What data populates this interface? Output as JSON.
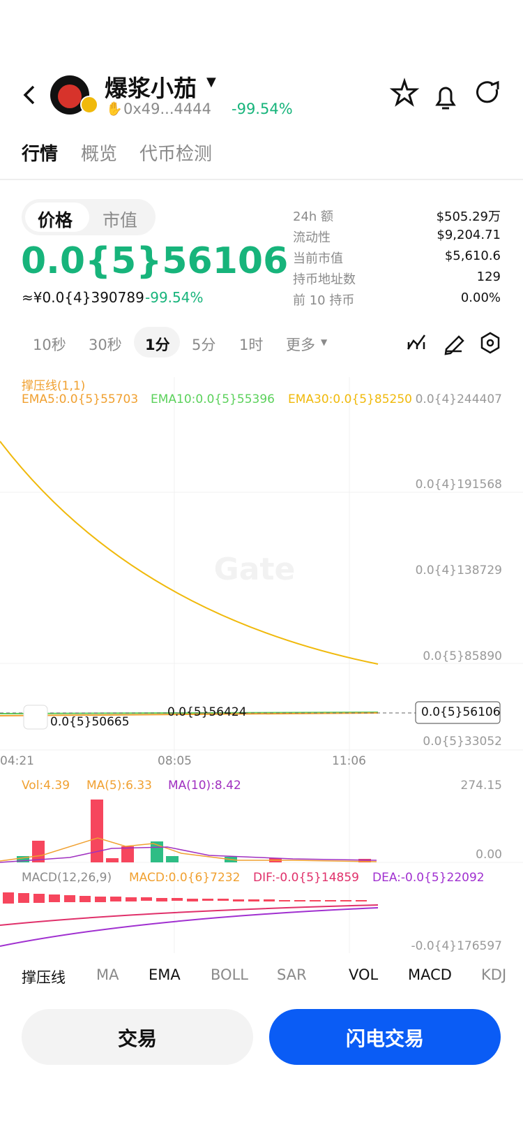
{
  "header": {
    "token_name": "爆浆小茄",
    "address": "0x49...4444",
    "change": "-99.54%"
  },
  "tabs": [
    "行情",
    "概览",
    "代币检测"
  ],
  "toggle": [
    "价格",
    "市值"
  ],
  "price": "0.0{5}56106",
  "price_cny": "≈¥0.0{4}390789",
  "price_change": "-99.54%",
  "stats": [
    {
      "label": "24h  额",
      "value": "$505.29万"
    },
    {
      "label": "流动性",
      "value": "$9,204.71"
    },
    {
      "label": "当前市值",
      "value": "$5,610.6"
    },
    {
      "label": "持币地址数",
      "value": "129"
    },
    {
      "label": "前 10 持币",
      "value": "0.00%"
    }
  ],
  "intervals": [
    "10秒",
    "30秒",
    "1分",
    "5分",
    "1时",
    "更多"
  ],
  "chart": {
    "indicator": "撑压线(1,1)",
    "ema": [
      "EMA5:0.0{5}55703",
      "EMA10:0.0{5}55396",
      "EMA30:0.0{5}85250"
    ],
    "price_axis": [
      "0.0{4}244407",
      "0.0{4}191568",
      "0.0{4}138729",
      "0.0{5}85890",
      "0.0{5}33052"
    ],
    "high_label": "0.0{5}56424",
    "low_label": "0.0{5}50665",
    "current": "0.0{5}56106",
    "time_axis": [
      "04:21",
      "08:05",
      "11:06"
    ],
    "watermark": "Gate"
  },
  "volume": {
    "labels": [
      "Vol:4.39",
      "MA(5):6.33",
      "MA(10):8.42"
    ],
    "axis": [
      "274.15",
      "0.00"
    ]
  },
  "macd": {
    "labels": [
      "MACD(12,26,9)",
      "MACD:0.0{6}7232",
      "DIF:-0.0{5}14859",
      "DEA:-0.0{5}22092"
    ],
    "axis_bottom": "-0.0{4}176597"
  },
  "indicators": [
    "撑压线",
    "MA",
    "EMA",
    "BOLL",
    "SAR",
    "VOL",
    "MACD",
    "KDJ"
  ],
  "buttons": [
    "交易",
    "闪电交易"
  ]
}
